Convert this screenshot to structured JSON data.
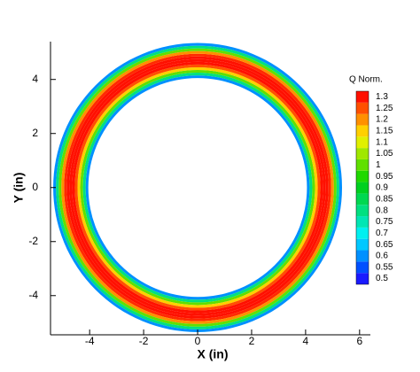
{
  "chart_data": {
    "type": "contour",
    "x_label": "X (in)",
    "y_label": "Y (in)",
    "xlim": [
      -5.45,
      6.4
    ],
    "ylim": [
      -5.45,
      5.4
    ],
    "xticks": [
      -4,
      -2,
      0,
      2,
      4,
      6
    ],
    "yticks": [
      -4,
      -2,
      0,
      2,
      4
    ],
    "radial_profile": {
      "r": [
        4.1,
        4.2,
        4.3,
        4.4,
        4.5,
        4.6,
        4.7,
        4.8,
        4.9,
        5.0,
        5.1,
        5.2,
        5.3
      ],
      "values": [
        0.6,
        0.8,
        1.0,
        1.15,
        1.25,
        1.3,
        1.3,
        1.3,
        1.28,
        1.2,
        1.0,
        0.8,
        0.6
      ]
    },
    "colorbar": {
      "title": "Q Norm.",
      "levels": [
        0.5,
        0.55,
        0.6,
        0.65,
        0.7,
        0.75,
        0.8,
        0.85,
        0.9,
        0.95,
        1,
        1.05,
        1.1,
        1.15,
        1.2,
        1.25,
        1.3
      ],
      "colors": [
        "#1a1aff",
        "#0050ff",
        "#0090ff",
        "#00c8ff",
        "#00f0f0",
        "#00e6b4",
        "#00e080",
        "#00d850",
        "#00d020",
        "#20d800",
        "#60e000",
        "#a0e800",
        "#e0f000",
        "#ffd000",
        "#ff9000",
        "#ff5000",
        "#ff1000"
      ]
    }
  }
}
